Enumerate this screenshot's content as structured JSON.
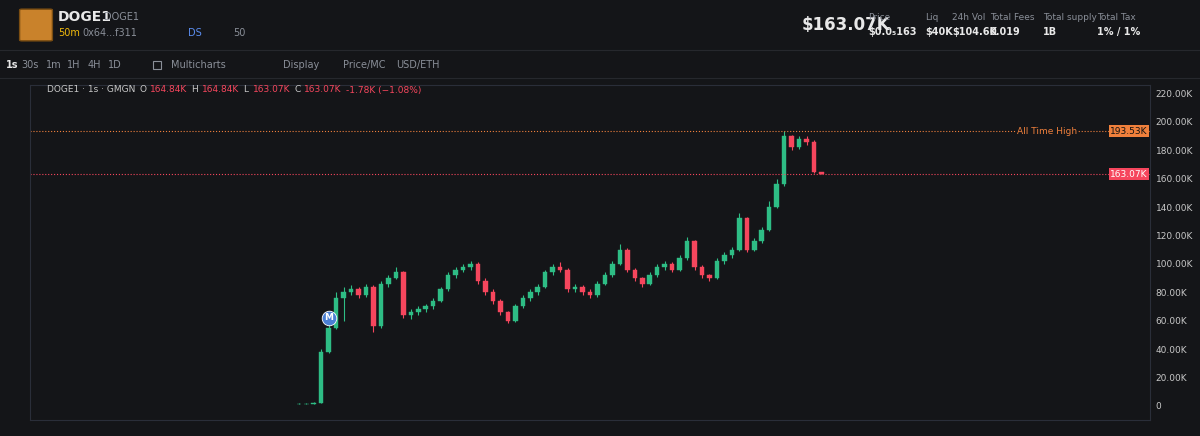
{
  "header": {
    "name": "DOGE1",
    "symbol": "DOGE1",
    "age": "50m",
    "address": "0x64...f311",
    "ds": "DS",
    "views": "50",
    "market_cap": "$163.07K",
    "stats": [
      {
        "label": "Price",
        "value": "$0.0₅163"
      },
      {
        "label": "Liq",
        "value": "$40K"
      },
      {
        "label": "24h Vol",
        "value": "$104.6K"
      },
      {
        "label": "Total Fees",
        "value": "0.019"
      },
      {
        "label": "Total supply",
        "value": "1B"
      },
      {
        "label": "Total Tax",
        "value": "1% / 1%"
      }
    ]
  },
  "toolbar": {
    "intervals": [
      "1s",
      "30s",
      "1m",
      "1H",
      "4H",
      "1D"
    ],
    "items": [
      "Multicharts",
      "Display",
      "Price/MC",
      "USD/ETH"
    ]
  },
  "chart_data": {
    "type": "candlestick",
    "title": "DOGE1 · 1s · GMGN",
    "ohlc": [
      {
        "label": "O",
        "value": "164.84K"
      },
      {
        "label": "H",
        "value": "164.84K"
      },
      {
        "label": "L",
        "value": "163.07K"
      },
      {
        "label": "C",
        "value": "163.07K"
      }
    ],
    "change": "-1.78K (−1.08%)",
    "x": [
      0,
      1,
      2,
      3,
      4,
      5,
      6,
      7,
      8,
      9,
      10,
      11,
      12,
      13,
      14,
      15,
      16,
      17,
      18,
      19,
      20,
      21,
      22,
      23,
      24,
      25,
      26,
      27,
      28,
      29,
      30,
      31,
      32,
      33,
      34,
      35,
      36,
      37,
      38,
      39,
      40,
      41,
      42,
      43,
      44,
      45,
      46,
      47,
      48,
      49,
      50,
      51,
      52,
      53,
      54,
      55,
      56,
      57,
      58,
      59,
      60,
      61,
      62,
      63,
      64,
      65,
      66,
      67,
      68,
      69,
      70
    ],
    "open": [
      1200,
      1500,
      1500,
      2000,
      38000,
      55000,
      76000,
      80000,
      82000,
      78000,
      84000,
      56000,
      86000,
      90000,
      94000,
      64000,
      66000,
      68000,
      70000,
      74000,
      82000,
      92000,
      96000,
      98000,
      100000,
      88000,
      80000,
      74000,
      66000,
      60000,
      70000,
      76000,
      80000,
      84000,
      94000,
      98000,
      96000,
      82000,
      84000,
      80000,
      78000,
      86000,
      92000,
      100000,
      110000,
      96000,
      90000,
      86000,
      92000,
      98000,
      100000,
      96000,
      104000,
      116000,
      98000,
      92000,
      90000,
      102000,
      106000,
      110000,
      132000,
      110000,
      116000,
      124000,
      140000,
      156000,
      190000,
      182000,
      188000,
      186000,
      164840
    ],
    "high": [
      1800,
      1900,
      2500,
      40000,
      58000,
      80000,
      84000,
      85000,
      84000,
      86000,
      85000,
      88000,
      92000,
      98000,
      95000,
      68000,
      70000,
      72000,
      76000,
      84000,
      94000,
      98000,
      100000,
      102000,
      101000,
      90000,
      82000,
      75000,
      67000,
      72000,
      78000,
      82000,
      86000,
      96000,
      100000,
      101000,
      97000,
      86000,
      85000,
      82000,
      88000,
      94000,
      102000,
      114000,
      111000,
      97000,
      91000,
      94000,
      100000,
      102000,
      101000,
      106000,
      119000,
      117000,
      99000,
      93000,
      104000,
      108000,
      112000,
      136000,
      133000,
      118000,
      126000,
      144000,
      160000,
      193530,
      191000,
      190000,
      190000,
      187000,
      164840
    ],
    "low": [
      1000,
      1200,
      1400,
      2000,
      37000,
      54000,
      60000,
      78000,
      76000,
      77000,
      52000,
      55000,
      84000,
      89000,
      62000,
      61000,
      64000,
      66000,
      68000,
      73000,
      81000,
      90000,
      94000,
      96000,
      86000,
      78000,
      72000,
      64000,
      58000,
      59000,
      69000,
      74000,
      78000,
      83000,
      92000,
      94000,
      80000,
      80000,
      78000,
      76000,
      77000,
      85000,
      91000,
      99000,
      94000,
      88000,
      84000,
      85000,
      91000,
      96000,
      94000,
      95000,
      103000,
      96000,
      90000,
      88000,
      89000,
      100000,
      104000,
      109000,
      108000,
      109000,
      115000,
      123000,
      139000,
      155000,
      180000,
      181000,
      184000,
      164000,
      163070
    ],
    "close": [
      1500,
      1500,
      2000,
      38000,
      55000,
      76000,
      80000,
      82000,
      78000,
      84000,
      56000,
      86000,
      90000,
      94000,
      64000,
      66000,
      68000,
      70000,
      74000,
      82000,
      92000,
      96000,
      98000,
      100000,
      88000,
      80000,
      74000,
      66000,
      60000,
      70000,
      76000,
      80000,
      84000,
      94000,
      98000,
      96000,
      82000,
      84000,
      80000,
      78000,
      86000,
      92000,
      100000,
      110000,
      96000,
      90000,
      86000,
      92000,
      98000,
      100000,
      96000,
      104000,
      116000,
      98000,
      92000,
      90000,
      102000,
      106000,
      110000,
      132000,
      110000,
      116000,
      124000,
      140000,
      156000,
      190000,
      182000,
      188000,
      186000,
      164840,
      163070
    ],
    "xlim": [
      -36,
      114
    ],
    "ylim": [
      -10000,
      226000
    ],
    "yticks": [
      0,
      {
        "value": 20000,
        "label": "20.00K"
      },
      {
        "value": 40000,
        "label": "40.00K"
      },
      {
        "value": 60000,
        "label": "60.00K"
      },
      {
        "value": 80000,
        "label": "80.00K"
      },
      {
        "value": 100000,
        "label": "100.00K"
      },
      {
        "value": 120000,
        "label": "120.00K"
      },
      {
        "value": 140000,
        "label": "140.00K"
      },
      {
        "value": 160000,
        "label": "160.00K"
      },
      {
        "value": 180000,
        "label": "180.00K"
      },
      {
        "value": 200000,
        "label": "200.00K"
      },
      {
        "value": 220000,
        "label": "220.00K"
      }
    ],
    "tick_labels": "y",
    "annotations": [
      {
        "text": "M",
        "x": 4,
        "y": 62000
      }
    ],
    "lines": [
      {
        "name": "All Time High",
        "value": 193530,
        "label": "193.53K",
        "color": "#f0803c",
        "line_style": "dotted"
      },
      {
        "value": 163070,
        "label": "163.07K",
        "color": "#f6465d",
        "line_style": "dotted"
      }
    ]
  }
}
